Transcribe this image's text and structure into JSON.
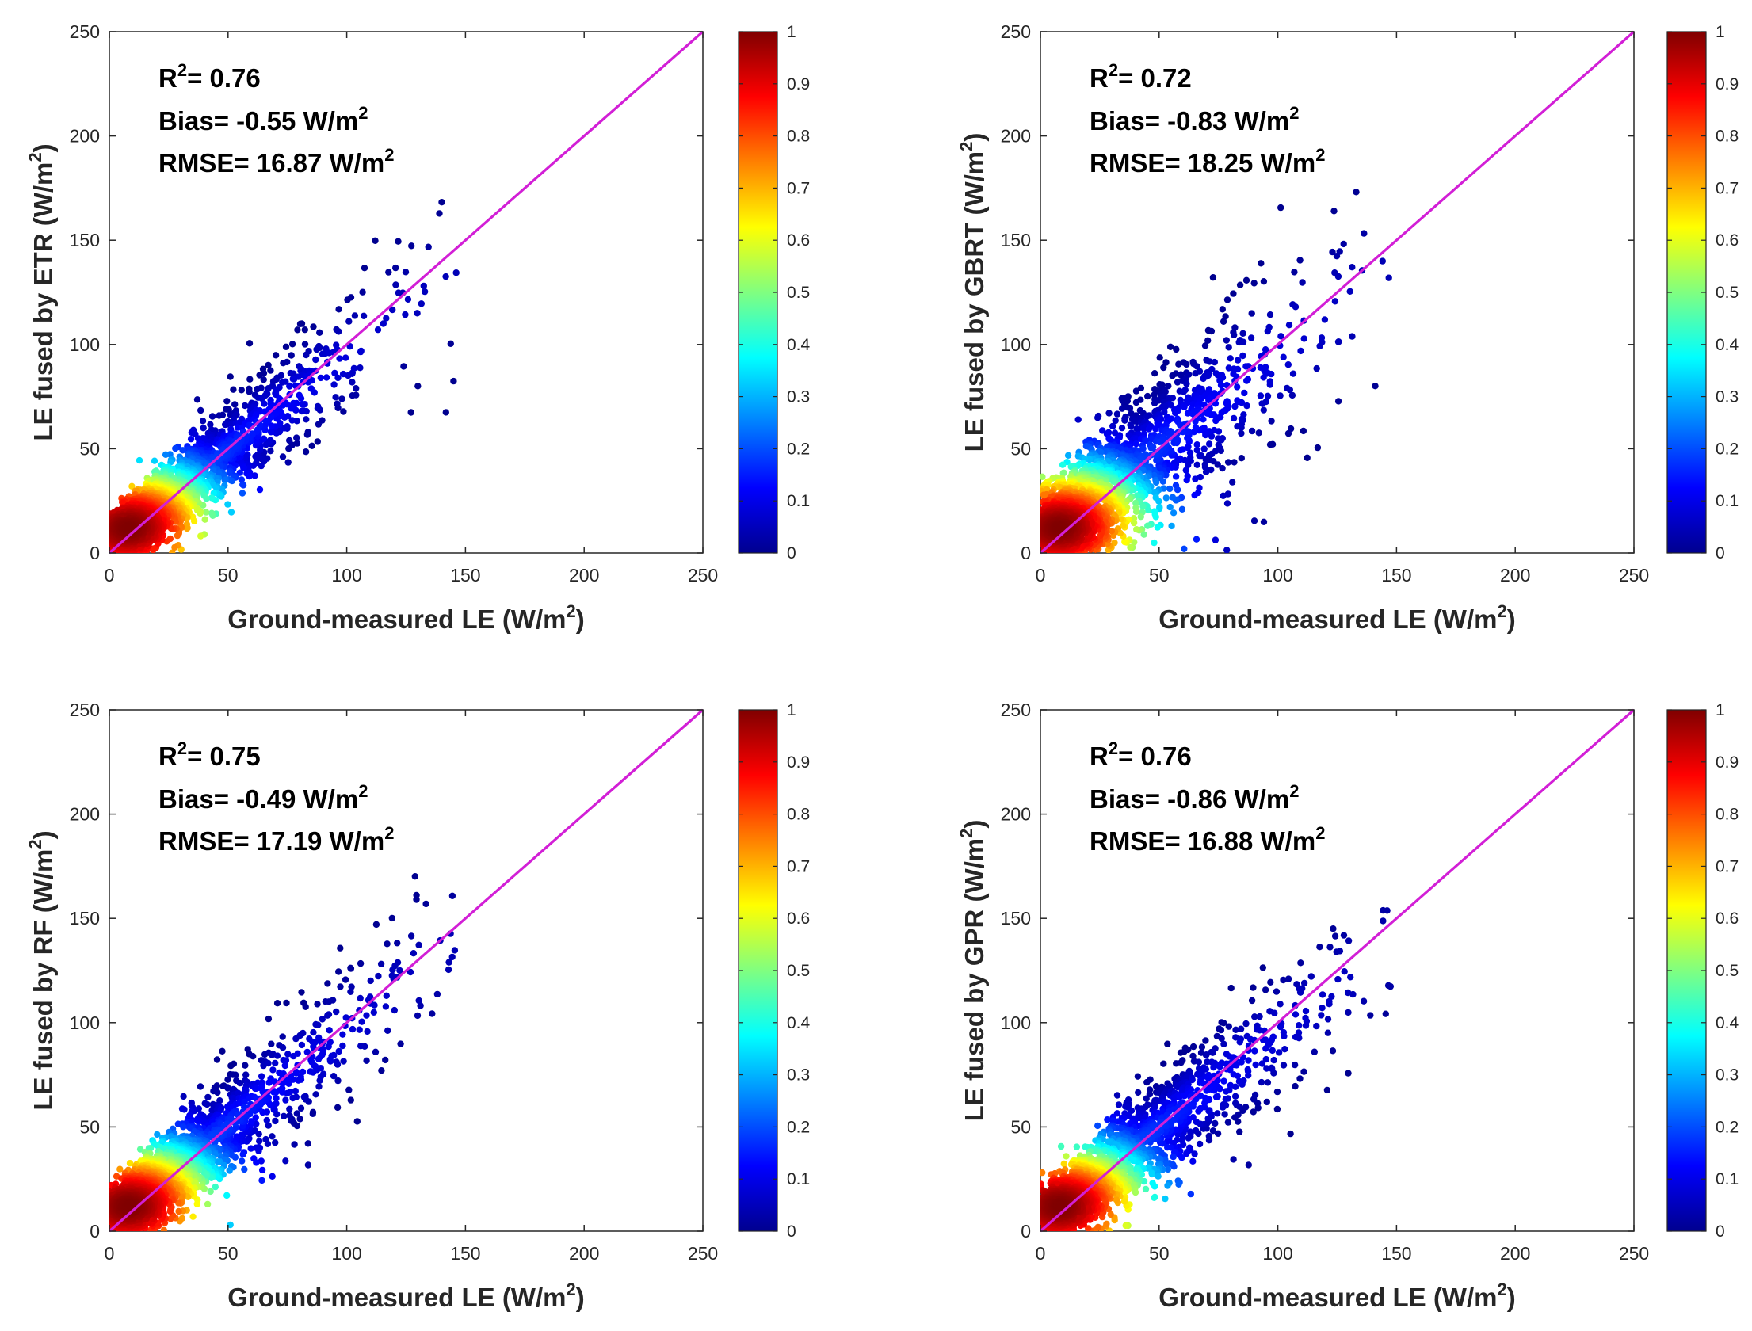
{
  "colors": {
    "identity_line": "#d21fd6",
    "axis": "#262626",
    "colormap": [
      "#00008f",
      "#0000ff",
      "#0080ff",
      "#00ffff",
      "#80ff80",
      "#ffff00",
      "#ff8000",
      "#ff0000",
      "#800000"
    ]
  },
  "chart_data": [
    {
      "type": "scatter",
      "subtype": "density-scatter",
      "xlabel": "Ground-measured LE (W/m",
      "xlabel_sup": "2",
      "xlabel_end": ")",
      "ylabel": "LE fused by ETR  (W/m",
      "ylabel_sup": "2",
      "ylabel_end": ")",
      "xlim": [
        0,
        250
      ],
      "ylim": [
        0,
        250
      ],
      "xticks": [
        "0",
        "50",
        "100",
        "150",
        "200",
        "250"
      ],
      "yticks": [
        "0",
        "50",
        "100",
        "150",
        "200",
        "250"
      ],
      "colorbar": {
        "range": [
          0,
          1
        ],
        "ticks": [
          "0",
          "0.1",
          "0.2",
          "0.3",
          "0.4",
          "0.5",
          "0.6",
          "0.7",
          "0.8",
          "0.9",
          "1"
        ]
      },
      "reference_line": {
        "from": [
          0,
          0
        ],
        "to": [
          250,
          250
        ]
      },
      "stats": {
        "r2_prefix": "R",
        "r2_sup": "2",
        "r2_text": "= 0.76",
        "bias_text": "Bias= -0.55 W/m",
        "bias_sup": "2",
        "rmse_text": "RMSE= 16.87 W/m",
        "rmse_sup": "2"
      },
      "cloud": {
        "slope": 0.9,
        "intercept": 4,
        "spread": 10,
        "x_max": 178,
        "seed": 11
      }
    },
    {
      "type": "scatter",
      "subtype": "density-scatter",
      "xlabel": "Ground-measured LE (W/m",
      "xlabel_sup": "2",
      "xlabel_end": ")",
      "ylabel": "LE fused by GBRT  (W/m",
      "ylabel_sup": "2",
      "ylabel_end": ")",
      "xlim": [
        0,
        250
      ],
      "ylim": [
        0,
        250
      ],
      "xticks": [
        "0",
        "50",
        "100",
        "150",
        "200",
        "250"
      ],
      "yticks": [
        "0",
        "50",
        "100",
        "150",
        "200",
        "250"
      ],
      "colorbar": {
        "range": [
          0,
          1
        ],
        "ticks": [
          "0",
          "0.1",
          "0.2",
          "0.3",
          "0.4",
          "0.5",
          "0.6",
          "0.7",
          "0.8",
          "0.9",
          "1"
        ]
      },
      "reference_line": {
        "from": [
          0,
          0
        ],
        "to": [
          250,
          250
        ]
      },
      "stats": {
        "r2_prefix": "R",
        "r2_sup": "2",
        "r2_text": "= 0.72",
        "bias_text": "Bias= -0.83 W/m",
        "bias_sup": "2",
        "rmse_text": "RMSE= 18.25 W/m",
        "rmse_sup": "2"
      },
      "cloud": {
        "slope": 0.88,
        "intercept": 6,
        "spread": 15,
        "x_max": 178,
        "seed": 23
      }
    },
    {
      "type": "scatter",
      "subtype": "density-scatter",
      "xlabel": "Ground-measured LE (W/m",
      "xlabel_sup": "2",
      "xlabel_end": ")",
      "ylabel": "LE fused by RF  (W/m",
      "ylabel_sup": "2",
      "ylabel_end": ")",
      "xlim": [
        0,
        250
      ],
      "ylim": [
        0,
        250
      ],
      "xticks": [
        "0",
        "50",
        "100",
        "150",
        "200",
        "250"
      ],
      "yticks": [
        "0",
        "50",
        "100",
        "150",
        "200",
        "250"
      ],
      "colorbar": {
        "range": [
          0,
          1
        ],
        "ticks": [
          "0",
          "0.1",
          "0.2",
          "0.3",
          "0.4",
          "0.5",
          "0.6",
          "0.7",
          "0.8",
          "0.9",
          "1"
        ]
      },
      "reference_line": {
        "from": [
          0,
          0
        ],
        "to": [
          250,
          250
        ]
      },
      "stats": {
        "r2_prefix": "R",
        "r2_sup": "2",
        "r2_text": "= 0.75",
        "bias_text": "Bias= -0.49 W/m",
        "bias_sup": "2",
        "rmse_text": "RMSE= 17.19 W/m",
        "rmse_sup": "2"
      },
      "cloud": {
        "slope": 0.92,
        "intercept": 4,
        "spread": 11,
        "x_max": 178,
        "seed": 37
      }
    },
    {
      "type": "scatter",
      "subtype": "density-scatter",
      "xlabel": "Ground-measured LE (W/m",
      "xlabel_sup": "2",
      "xlabel_end": ")",
      "ylabel": "LE fused by GPR  (W/m",
      "ylabel_sup": "2",
      "ylabel_end": ")",
      "xlim": [
        0,
        250
      ],
      "ylim": [
        0,
        250
      ],
      "xticks": [
        "0",
        "50",
        "100",
        "150",
        "200",
        "250"
      ],
      "yticks": [
        "0",
        "50",
        "100",
        "150",
        "200",
        "250"
      ],
      "colorbar": {
        "range": [
          0,
          1
        ],
        "ticks": [
          "0",
          "0.1",
          "0.2",
          "0.3",
          "0.4",
          "0.5",
          "0.6",
          "0.7",
          "0.8",
          "0.9",
          "1"
        ]
      },
      "reference_line": {
        "from": [
          0,
          0
        ],
        "to": [
          250,
          250
        ]
      },
      "stats": {
        "r2_prefix": "R",
        "r2_sup": "2",
        "r2_text": "= 0.76",
        "bias_text": "Bias= -0.86 W/m",
        "bias_sup": "2",
        "rmse_text": "RMSE= 16.88 W/m",
        "rmse_sup": "2"
      },
      "cloud": {
        "slope": 0.9,
        "intercept": 4,
        "spread": 11,
        "x_max": 178,
        "seed": 51
      }
    }
  ]
}
